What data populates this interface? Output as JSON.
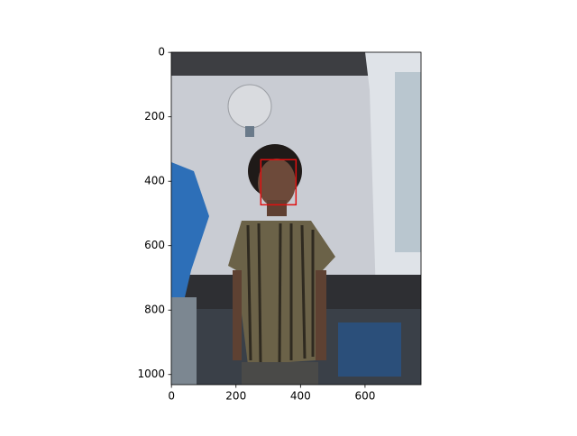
{
  "chart_data": {
    "type": "image",
    "xlim": [
      -0.5,
      773.5
    ],
    "ylim": [
      1031.5,
      -0.5
    ],
    "xticks": [
      0,
      200,
      400,
      600
    ],
    "yticks": [
      0,
      200,
      400,
      600,
      800,
      1000
    ],
    "box": {
      "x": 277,
      "y": 333,
      "width": 109,
      "height": 140,
      "color": "#e01010"
    }
  }
}
